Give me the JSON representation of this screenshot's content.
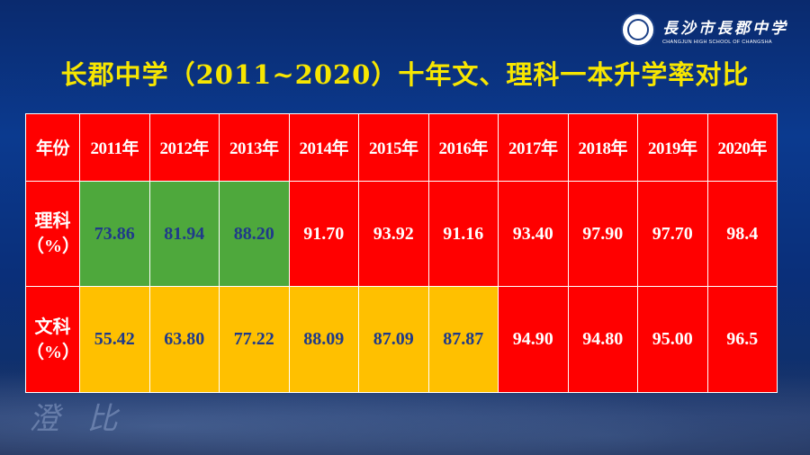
{
  "logo": {
    "school_name_cn": "長沙市長郡中学",
    "school_name_en": "CHANGJUN HIGH SCHOOL OF CHANGSHA"
  },
  "title": "长郡中学（2011~2020）十年文、理科一本升学率对比",
  "table": {
    "corner_label": "年份",
    "years": [
      "2011年",
      "2012年",
      "2013年",
      "2014年",
      "2015年",
      "2016年",
      "2017年",
      "2018年",
      "2019年",
      "2020年"
    ],
    "rows": [
      {
        "label_top": "理科",
        "label_bottom": "（%）",
        "values": [
          "73.86",
          "81.94",
          "88.20",
          "91.70",
          "93.92",
          "91.16",
          "93.40",
          "97.90",
          "97.70",
          "98.4"
        ],
        "cell_colors": [
          "green",
          "green",
          "green",
          "red",
          "red",
          "red",
          "red",
          "red",
          "red",
          "red"
        ]
      },
      {
        "label_top": "文科",
        "label_bottom": "（%）",
        "values": [
          "55.42",
          "63.80",
          "77.22",
          "88.09",
          "87.09",
          "87.87",
          "94.90",
          "94.80",
          "95.00",
          "96.5"
        ],
        "cell_colors": [
          "orange",
          "orange",
          "orange",
          "orange",
          "orange",
          "orange",
          "red",
          "red",
          "red",
          "red"
        ]
      }
    ]
  },
  "colors": {
    "title": "#f7e600",
    "header_bg": "#ff0000",
    "green": "#4ea83c",
    "orange": "#ffc000",
    "red": "#ff0000",
    "value_text_dark": "#1f3a8a"
  }
}
